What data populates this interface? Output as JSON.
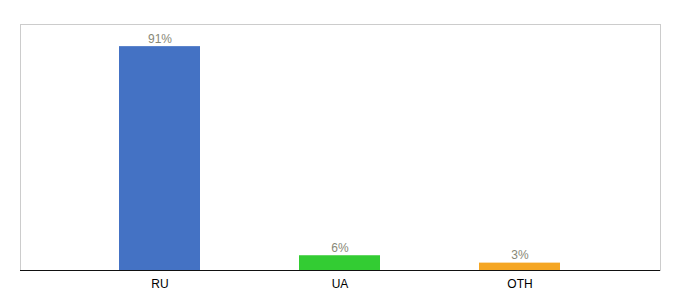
{
  "chart_data": {
    "type": "bar",
    "categories": [
      "RU",
      "UA",
      "OTH"
    ],
    "values": [
      91,
      6,
      3
    ],
    "value_labels": [
      "91%",
      "6%",
      "3%"
    ],
    "colors": [
      "#4472c4",
      "#33cc33",
      "#f5a623"
    ],
    "data_labels": true,
    "ylim": [
      0,
      100
    ],
    "tick_labels": "x",
    "grid": false
  }
}
